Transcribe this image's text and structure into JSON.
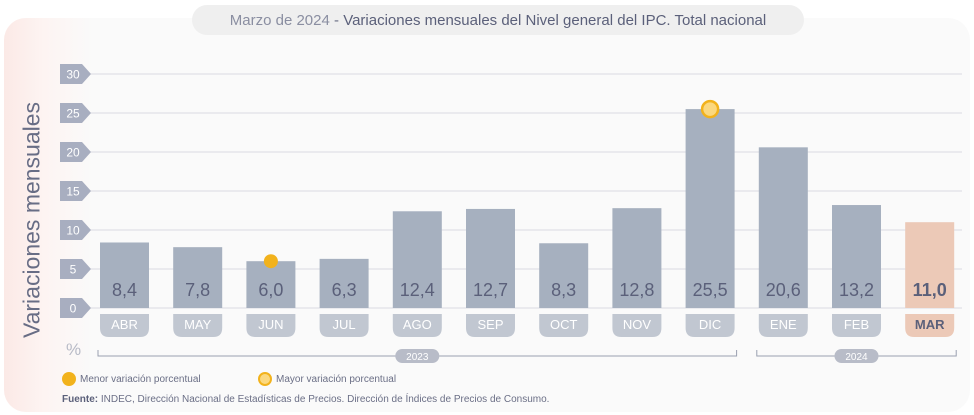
{
  "header": {
    "subtitle": "Marzo de 2024",
    "separator": " - ",
    "title": "Variaciones mensuales del Nivel general del IPC. Total nacional"
  },
  "y_axis_label": "Variaciones mensuales",
  "unit": "%",
  "legend": {
    "min_label": "Menor variación porcentual",
    "max_label": "Mayor variación porcentual"
  },
  "source": {
    "prefix": "Fuente:",
    "text": " INDEC, Dirección Nacional de Estadísticas de Precios. Dirección de Índices de Precios de Consumo."
  },
  "colors": {
    "bar": "#a6b0bf",
    "bar_highlight": "#ecc9b7",
    "label_pill": "#c1c7d1",
    "label_pill_highlight": "#ecc9b7",
    "marker": "#f2b21c",
    "text": "#5b607a"
  },
  "chart_data": {
    "type": "bar",
    "categories": [
      "ABR",
      "MAY",
      "JUN",
      "JUL",
      "AGO",
      "SEP",
      "OCT",
      "NOV",
      "DIC",
      "ENE",
      "FEB",
      "MAR"
    ],
    "values": [
      8.4,
      7.8,
      6.0,
      6.3,
      12.4,
      12.7,
      8.3,
      12.8,
      25.5,
      20.6,
      13.2,
      11.0
    ],
    "value_labels": [
      "8,4",
      "7,8",
      "6,0",
      "6,3",
      "12,4",
      "12,7",
      "8,3",
      "12,8",
      "25,5",
      "20,6",
      "13,2",
      "11,0"
    ],
    "highlight_index": 11,
    "min_index": 2,
    "max_index": 8,
    "ylim": [
      0,
      30
    ],
    "yticks": [
      0,
      5,
      10,
      15,
      20,
      25,
      30
    ],
    "grid": true,
    "year_groups": [
      {
        "label": "2023",
        "start": 0,
        "end": 8
      },
      {
        "label": "2024",
        "start": 9,
        "end": 11
      }
    ]
  }
}
